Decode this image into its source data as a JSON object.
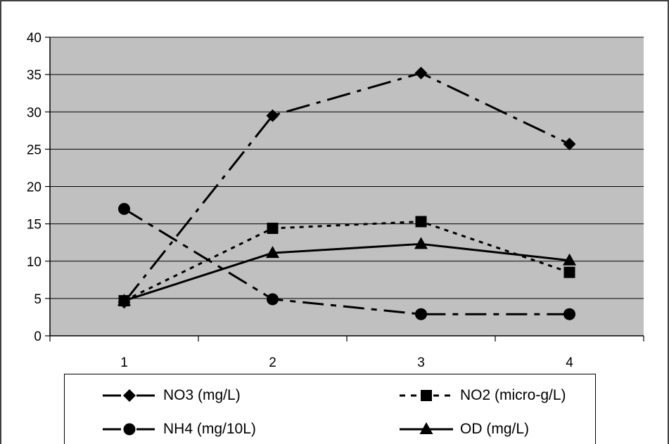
{
  "chart_data": {
    "type": "line",
    "title": "",
    "xlabel": "",
    "ylabel": "",
    "categories": [
      "1",
      "2",
      "3",
      "4"
    ],
    "ylim": [
      0,
      40
    ],
    "yticks": [
      "0",
      "5",
      "10",
      "15",
      "20",
      "25",
      "30",
      "35",
      "40"
    ],
    "grid": "horizontal",
    "legend_position": "bottom",
    "series": [
      {
        "name": "NO3 (mg/L)",
        "values": [
          4.5,
          29.5,
          35.2,
          25.7
        ],
        "marker": "diamond",
        "line_style": "long-dash-dot",
        "color": "#000000"
      },
      {
        "name": "NO2 (micro-g/L)",
        "values": [
          4.7,
          14.4,
          15.3,
          8.5
        ],
        "marker": "square",
        "line_style": "dotted",
        "color": "#000000"
      },
      {
        "name": "NH4 (mg/10L)",
        "values": [
          17.0,
          4.9,
          2.9,
          2.9
        ],
        "marker": "circle",
        "line_style": "dash-dot",
        "color": "#000000"
      },
      {
        "name": "OD (mg/L)",
        "values": [
          4.7,
          11.1,
          12.3,
          10.1
        ],
        "marker": "triangle",
        "line_style": "solid",
        "color": "#000000"
      }
    ],
    "plot_background": "#c0c0c0"
  }
}
